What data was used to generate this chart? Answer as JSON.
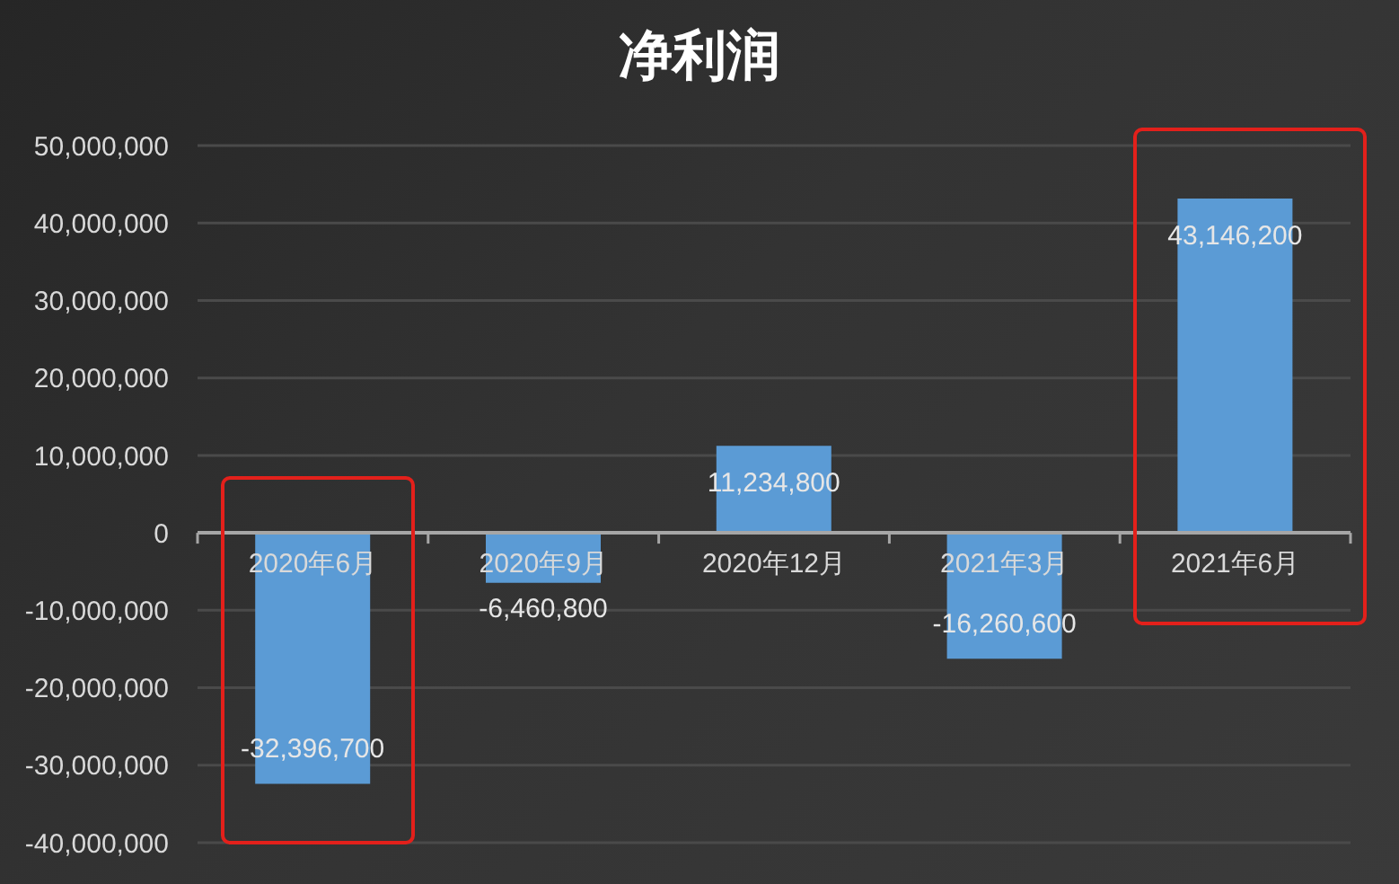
{
  "chart_data": {
    "type": "bar",
    "title": "净利润",
    "categories": [
      "2020年6月",
      "2020年9月",
      "2020年12月",
      "2021年3月",
      "2021年6月"
    ],
    "values": [
      -32396700,
      -6460800,
      11234800,
      -16260600,
      43146200
    ],
    "value_labels": [
      "-32,396,700",
      "-6,460,800",
      "11,234,800",
      "-16,260,600",
      "43,146,200"
    ],
    "color": "#5b9bd5",
    "ylim": [
      -40000000,
      50000000
    ],
    "yticks": [
      {
        "value": -40000000,
        "label": "-40,000,000"
      },
      {
        "value": -30000000,
        "label": "-30,000,000"
      },
      {
        "value": -20000000,
        "label": "-20,000,000"
      },
      {
        "value": -10000000,
        "label": "-10,000,000"
      },
      0,
      {
        "value": 10000000,
        "label": "10,000,000"
      },
      {
        "value": 20000000,
        "label": "20,000,000"
      },
      {
        "value": 30000000,
        "label": "30,000,000"
      },
      {
        "value": 40000000,
        "label": "40,000,000"
      },
      {
        "value": 50000000,
        "label": "50,000,000"
      }
    ],
    "grid": "y"
  }
}
